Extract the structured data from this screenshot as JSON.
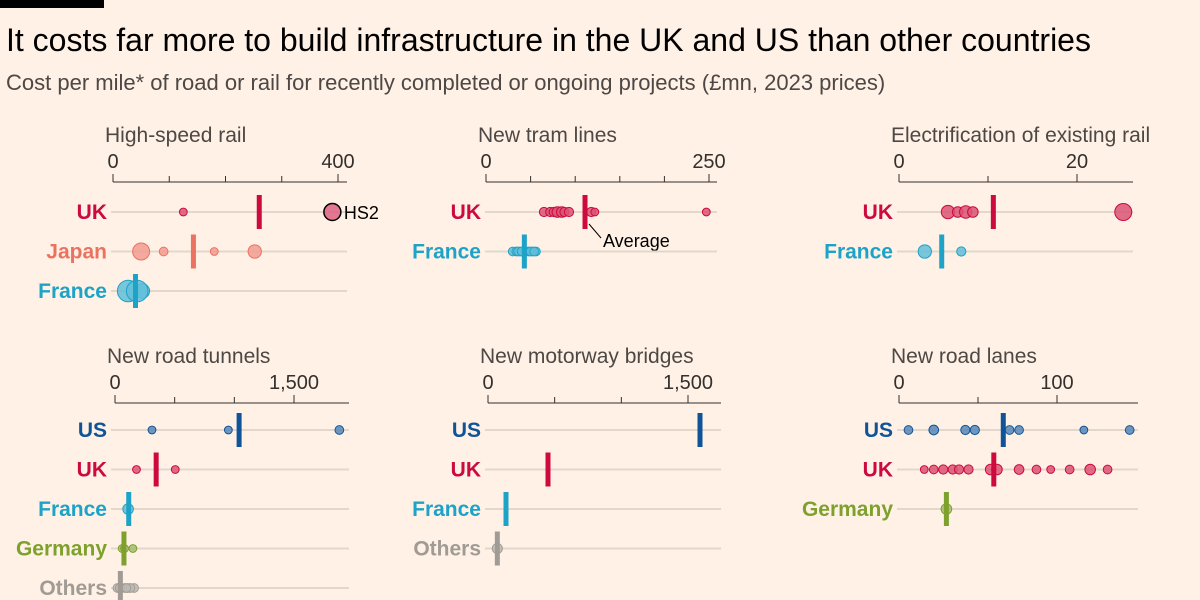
{
  "title": "It costs far more to build infrastructure in the UK and US than other countries",
  "subtitle": "Cost per mile* of road or rail for recently completed or ongoing projects (£mn, 2023 prices)",
  "colors": {
    "UK": "#CC0A3D",
    "Japan": "#EB7260",
    "France": "#1DA2C8",
    "US": "#0F5499",
    "Germany": "#7EA12E",
    "Others": "#A09B95",
    "background": "#FFF1E5"
  },
  "chart_data": [
    {
      "type": "scatter",
      "title": "High-speed rail",
      "xlim": [
        0,
        400
      ],
      "ticks": [
        0,
        400
      ],
      "minor_ticks": [
        100,
        200,
        300
      ],
      "rows": [
        {
          "name": "UK",
          "average": 260,
          "points": [
            {
              "x": 125,
              "size": 1
            },
            {
              "x": 390,
              "size": 3,
              "label": "HS2"
            }
          ]
        },
        {
          "name": "Japan",
          "average": 143,
          "points": [
            {
              "x": 50,
              "size": 3
            },
            {
              "x": 90,
              "size": 1.2
            },
            {
              "x": 180,
              "size": 1
            },
            {
              "x": 252,
              "size": 2.2
            }
          ]
        },
        {
          "name": "France",
          "average": 40,
          "points": [
            {
              "x": 27,
              "size": 4
            },
            {
              "x": 52,
              "size": 2.5
            },
            {
              "x": 43,
              "size": 4
            }
          ]
        }
      ]
    },
    {
      "type": "scatter",
      "title": "New tram lines",
      "xlim": [
        0,
        250
      ],
      "ticks": [
        0,
        250
      ],
      "minor_ticks": [
        50,
        100,
        150,
        200
      ],
      "annotation": {
        "text": "Average",
        "row": "UK"
      },
      "rows": [
        {
          "name": "UK",
          "average": 111,
          "points": [
            {
              "x": 65,
              "size": 1.3
            },
            {
              "x": 72,
              "size": 1.3
            },
            {
              "x": 76,
              "size": 1.3
            },
            {
              "x": 80,
              "size": 1.6
            },
            {
              "x": 85,
              "size": 1.6
            },
            {
              "x": 88,
              "size": 1.3
            },
            {
              "x": 93,
              "size": 1.3
            },
            {
              "x": 118,
              "size": 1.3
            },
            {
              "x": 122,
              "size": 1
            },
            {
              "x": 247,
              "size": 1
            }
          ]
        },
        {
          "name": "France",
          "average": 43,
          "points": [
            {
              "x": 30,
              "size": 1.2
            },
            {
              "x": 34,
              "size": 1.2
            },
            {
              "x": 38,
              "size": 1.2
            },
            {
              "x": 41,
              "size": 1.2
            },
            {
              "x": 45,
              "size": 1.2
            },
            {
              "x": 48,
              "size": 1.2
            },
            {
              "x": 52,
              "size": 1.2
            },
            {
              "x": 56,
              "size": 1.2
            },
            {
              "x": 36,
              "size": 1.2
            },
            {
              "x": 50,
              "size": 1.2
            },
            {
              "x": 40,
              "size": 1.2
            },
            {
              "x": 54,
              "size": 1.2
            }
          ]
        }
      ]
    },
    {
      "type": "scatter",
      "title": "Electrification of existing rail",
      "xlim": [
        0,
        20
      ],
      "ticks": [
        0,
        20
      ],
      "minor_ticks": [
        10
      ],
      "rows": [
        {
          "name": "UK",
          "average": 10.6,
          "points": [
            {
              "x": 5.5,
              "size": 2.2
            },
            {
              "x": 6.6,
              "size": 1.6
            },
            {
              "x": 7.5,
              "size": 2
            },
            {
              "x": 8.3,
              "size": 1.6
            },
            {
              "x": 25.2,
              "size": 3
            }
          ]
        },
        {
          "name": "France",
          "average": 4.8,
          "points": [
            {
              "x": 2.9,
              "size": 2.2
            },
            {
              "x": 7,
              "size": 1.3
            }
          ]
        }
      ]
    },
    {
      "type": "scatter",
      "title": "New road tunnels",
      "xlim": [
        0,
        1500
      ],
      "ticks": [
        0,
        1500
      ],
      "minor_ticks": [
        500,
        1000
      ],
      "rows": [
        {
          "name": "US",
          "average": 1040,
          "points": [
            {
              "x": 310,
              "size": 1
            },
            {
              "x": 950,
              "size": 1
            },
            {
              "x": 1880,
              "size": 1.2
            }
          ]
        },
        {
          "name": "UK",
          "average": 345,
          "points": [
            {
              "x": 180,
              "size": 1
            },
            {
              "x": 505,
              "size": 1
            }
          ]
        },
        {
          "name": "France",
          "average": 115,
          "points": [
            {
              "x": 110,
              "size": 1.6
            }
          ]
        },
        {
          "name": "Germany",
          "average": 75,
          "points": [
            {
              "x": 60,
              "size": 1
            },
            {
              "x": 80,
              "size": 1
            },
            {
              "x": 150,
              "size": 1
            }
          ]
        },
        {
          "name": "Others",
          "average": 45,
          "points": [
            {
              "x": 20,
              "size": 1.2
            },
            {
              "x": 50,
              "size": 1.2
            },
            {
              "x": 80,
              "size": 1.2
            },
            {
              "x": 110,
              "size": 1.2
            },
            {
              "x": 160,
              "size": 1.2
            },
            {
              "x": 40,
              "size": 1.2
            },
            {
              "x": 130,
              "size": 1.2
            },
            {
              "x": 95,
              "size": 1.2
            }
          ]
        }
      ]
    },
    {
      "type": "scatter",
      "title": "New motorway bridges",
      "xlim": [
        0,
        1500
      ],
      "ticks": [
        0,
        1500
      ],
      "minor_ticks": [
        500,
        1000
      ],
      "rows": [
        {
          "name": "US",
          "average": 1590,
          "points": []
        },
        {
          "name": "UK",
          "average": 450,
          "points": []
        },
        {
          "name": "France",
          "average": 135,
          "points": []
        },
        {
          "name": "Others",
          "average": 70,
          "points": [
            {
              "x": 70,
              "size": 1.5
            }
          ]
        }
      ]
    },
    {
      "type": "scatter",
      "title": "New road lanes",
      "xlim": [
        0,
        100
      ],
      "ticks": [
        0,
        100
      ],
      "minor_ticks": [
        50
      ],
      "rows": [
        {
          "name": "US",
          "average": 66,
          "points": [
            {
              "x": 6,
              "size": 1.2
            },
            {
              "x": 22,
              "size": 1.4
            },
            {
              "x": 42,
              "size": 1.3
            },
            {
              "x": 48,
              "size": 1.3
            },
            {
              "x": 70,
              "size": 1.2
            },
            {
              "x": 76,
              "size": 1.2
            },
            {
              "x": 117,
              "size": 1
            },
            {
              "x": 146,
              "size": 1.2
            }
          ]
        },
        {
          "name": "UK",
          "average": 60,
          "points": [
            {
              "x": 16,
              "size": 1
            },
            {
              "x": 22,
              "size": 1.2
            },
            {
              "x": 28,
              "size": 1.3
            },
            {
              "x": 34,
              "size": 1.3
            },
            {
              "x": 38,
              "size": 1.3
            },
            {
              "x": 44,
              "size": 1.3
            },
            {
              "x": 58,
              "size": 1.6
            },
            {
              "x": 62,
              "size": 1.6
            },
            {
              "x": 76,
              "size": 1.4
            },
            {
              "x": 87,
              "size": 1.2
            },
            {
              "x": 96,
              "size": 1
            },
            {
              "x": 108,
              "size": 1.2
            },
            {
              "x": 121,
              "size": 1.6
            },
            {
              "x": 132,
              "size": 1.2
            }
          ]
        },
        {
          "name": "Germany",
          "average": 30,
          "points": [
            {
              "x": 30,
              "size": 1.6
            }
          ]
        }
      ]
    }
  ]
}
